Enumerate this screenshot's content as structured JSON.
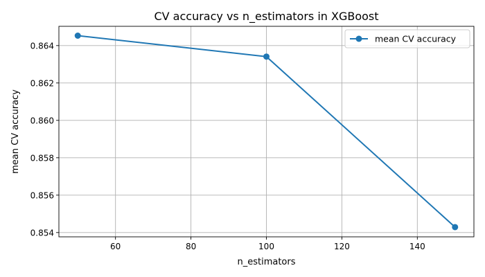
{
  "chart_data": {
    "type": "line",
    "title": "CV accuracy vs n_estimators in XGBoost",
    "xlabel": "n_estimators",
    "ylabel": "mean CV accuracy",
    "xlim": [
      45,
      155
    ],
    "ylim": [
      0.85377,
      0.86503
    ],
    "xticks": [
      60,
      80,
      100,
      120,
      140
    ],
    "xtick_labels": [
      "60",
      "80",
      "100",
      "120",
      "140"
    ],
    "yticks": [
      0.854,
      0.856,
      0.858,
      0.86,
      0.862,
      0.864
    ],
    "ytick_labels": [
      "0.854",
      "0.856",
      "0.858",
      "0.860",
      "0.862",
      "0.864"
    ],
    "grid": true,
    "legend_position": "top-right",
    "series": [
      {
        "name": "mean CV accuracy",
        "color": "#1f77b4",
        "marker": "circle",
        "x": [
          50,
          100,
          150
        ],
        "y": [
          0.86453,
          0.86341,
          0.85429
        ]
      }
    ]
  }
}
